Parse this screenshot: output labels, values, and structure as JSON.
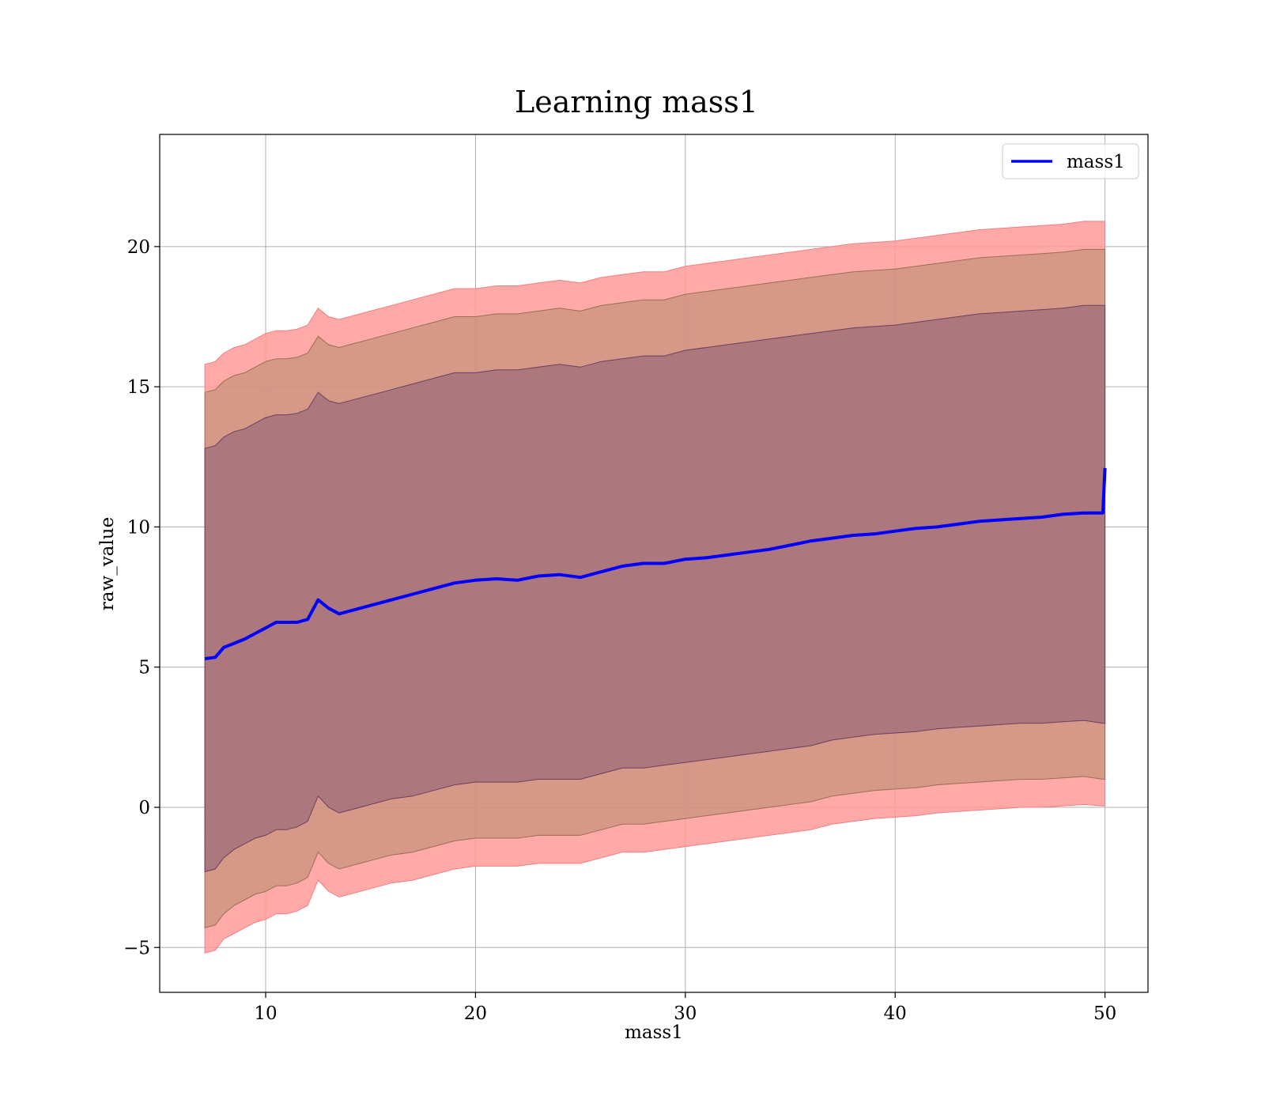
{
  "chart_data": {
    "type": "line",
    "title": "Learning mass1",
    "xlabel": "mass1",
    "ylabel": "raw_value",
    "xlim": [
      4.95,
      52.05
    ],
    "ylim": [
      -6.6,
      24.0
    ],
    "xticks": [
      10,
      20,
      30,
      40,
      50
    ],
    "yticks": [
      -5,
      0,
      5,
      10,
      15,
      20
    ],
    "xtick_labels": [
      "10",
      "20",
      "30",
      "40",
      "50"
    ],
    "ytick_labels": [
      "−5",
      "0",
      "5",
      "10",
      "15",
      "20"
    ],
    "grid": true,
    "legend": {
      "position": "top-right",
      "entries": [
        "mass1"
      ]
    },
    "colors": {
      "line": "#0000ff",
      "band_outer": "#ff9a9a",
      "band_middle": "#c4917b",
      "band_inner": "#a07078",
      "grid": "#b0b0b0"
    },
    "x": [
      7.1,
      7.6,
      8.0,
      8.5,
      9.0,
      9.5,
      10.0,
      10.5,
      11.0,
      11.5,
      12.0,
      12.5,
      13.0,
      13.5,
      14.0,
      14.5,
      15.0,
      16.0,
      17.0,
      18.0,
      19.0,
      20.0,
      21.0,
      22.0,
      23.0,
      24.0,
      25.0,
      26.0,
      27.0,
      28.0,
      29.0,
      30.0,
      31.0,
      32.0,
      33.0,
      34.0,
      35.0,
      36.0,
      37.0,
      38.0,
      39.0,
      40.0,
      41.0,
      42.0,
      43.0,
      44.0,
      45.0,
      46.0,
      47.0,
      48.0,
      49.0,
      49.9,
      50.0
    ],
    "series": [
      {
        "name": "mass1",
        "values": [
          5.3,
          5.35,
          5.7,
          5.85,
          6.0,
          6.2,
          6.4,
          6.6,
          6.6,
          6.6,
          6.7,
          7.4,
          7.1,
          6.9,
          7.0,
          7.1,
          7.2,
          7.4,
          7.6,
          7.8,
          8.0,
          8.1,
          8.15,
          8.1,
          8.25,
          8.3,
          8.2,
          8.4,
          8.6,
          8.7,
          8.7,
          8.85,
          8.9,
          9.0,
          9.1,
          9.2,
          9.35,
          9.5,
          9.6,
          9.7,
          9.75,
          9.85,
          9.95,
          10.0,
          10.1,
          10.2,
          10.25,
          10.3,
          10.35,
          10.45,
          10.5,
          10.5,
          12.1
        ]
      }
    ],
    "bands": [
      {
        "lower": [
          -5.2,
          -5.1,
          -4.7,
          -4.5,
          -4.3,
          -4.1,
          -4.0,
          -3.8,
          -3.8,
          -3.7,
          -3.5,
          -2.6,
          -3.0,
          -3.2,
          -3.1,
          -3.0,
          -2.9,
          -2.7,
          -2.6,
          -2.4,
          -2.2,
          -2.1,
          -2.1,
          -2.1,
          -2.0,
          -2.0,
          -2.0,
          -1.8,
          -1.6,
          -1.6,
          -1.5,
          -1.4,
          -1.3,
          -1.2,
          -1.1,
          -1.0,
          -0.9,
          -0.8,
          -0.6,
          -0.5,
          -0.4,
          -0.35,
          -0.3,
          -0.2,
          -0.15,
          -0.1,
          -0.05,
          0.0,
          0.0,
          0.05,
          0.1,
          0.05,
          0.05
        ],
        "upper": [
          15.8,
          15.9,
          16.2,
          16.4,
          16.5,
          16.7,
          16.9,
          17.0,
          17.0,
          17.05,
          17.2,
          17.8,
          17.5,
          17.4,
          17.5,
          17.6,
          17.7,
          17.9,
          18.1,
          18.3,
          18.5,
          18.5,
          18.6,
          18.6,
          18.7,
          18.8,
          18.7,
          18.9,
          19.0,
          19.1,
          19.1,
          19.3,
          19.4,
          19.5,
          19.6,
          19.7,
          19.8,
          19.9,
          20.0,
          20.1,
          20.15,
          20.2,
          20.3,
          20.4,
          20.5,
          20.6,
          20.65,
          20.7,
          20.75,
          20.8,
          20.9,
          20.9,
          20.9
        ]
      },
      {
        "lower": [
          -4.3,
          -4.2,
          -3.8,
          -3.5,
          -3.3,
          -3.1,
          -3.0,
          -2.8,
          -2.8,
          -2.7,
          -2.5,
          -1.6,
          -2.0,
          -2.2,
          -2.1,
          -2.0,
          -1.9,
          -1.7,
          -1.6,
          -1.4,
          -1.2,
          -1.1,
          -1.1,
          -1.1,
          -1.0,
          -1.0,
          -1.0,
          -0.8,
          -0.6,
          -0.6,
          -0.5,
          -0.4,
          -0.3,
          -0.2,
          -0.1,
          0.0,
          0.1,
          0.2,
          0.4,
          0.5,
          0.6,
          0.65,
          0.7,
          0.8,
          0.85,
          0.9,
          0.95,
          1.0,
          1.0,
          1.05,
          1.1,
          1.0,
          1.0
        ],
        "upper": [
          14.8,
          14.9,
          15.2,
          15.4,
          15.5,
          15.7,
          15.9,
          16.0,
          16.0,
          16.05,
          16.2,
          16.8,
          16.5,
          16.4,
          16.5,
          16.6,
          16.7,
          16.9,
          17.1,
          17.3,
          17.5,
          17.5,
          17.6,
          17.6,
          17.7,
          17.8,
          17.7,
          17.9,
          18.0,
          18.1,
          18.1,
          18.3,
          18.4,
          18.5,
          18.6,
          18.7,
          18.8,
          18.9,
          19.0,
          19.1,
          19.15,
          19.2,
          19.3,
          19.4,
          19.5,
          19.6,
          19.65,
          19.7,
          19.75,
          19.8,
          19.9,
          19.9,
          19.9
        ]
      },
      {
        "lower": [
          -2.3,
          -2.2,
          -1.8,
          -1.5,
          -1.3,
          -1.1,
          -1.0,
          -0.8,
          -0.8,
          -0.7,
          -0.5,
          0.4,
          0.0,
          -0.2,
          -0.1,
          0.0,
          0.1,
          0.3,
          0.4,
          0.6,
          0.8,
          0.9,
          0.9,
          0.9,
          1.0,
          1.0,
          1.0,
          1.2,
          1.4,
          1.4,
          1.5,
          1.6,
          1.7,
          1.8,
          1.9,
          2.0,
          2.1,
          2.2,
          2.4,
          2.5,
          2.6,
          2.65,
          2.7,
          2.8,
          2.85,
          2.9,
          2.95,
          3.0,
          3.0,
          3.05,
          3.1,
          3.0,
          3.0
        ],
        "upper": [
          12.8,
          12.9,
          13.2,
          13.4,
          13.5,
          13.7,
          13.9,
          14.0,
          14.0,
          14.05,
          14.2,
          14.8,
          14.5,
          14.4,
          14.5,
          14.6,
          14.7,
          14.9,
          15.1,
          15.3,
          15.5,
          15.5,
          15.6,
          15.6,
          15.7,
          15.8,
          15.7,
          15.9,
          16.0,
          16.1,
          16.1,
          16.3,
          16.4,
          16.5,
          16.6,
          16.7,
          16.8,
          16.9,
          17.0,
          17.1,
          17.15,
          17.2,
          17.3,
          17.4,
          17.5,
          17.6,
          17.65,
          17.7,
          17.75,
          17.8,
          17.9,
          17.9,
          17.9
        ]
      }
    ]
  }
}
